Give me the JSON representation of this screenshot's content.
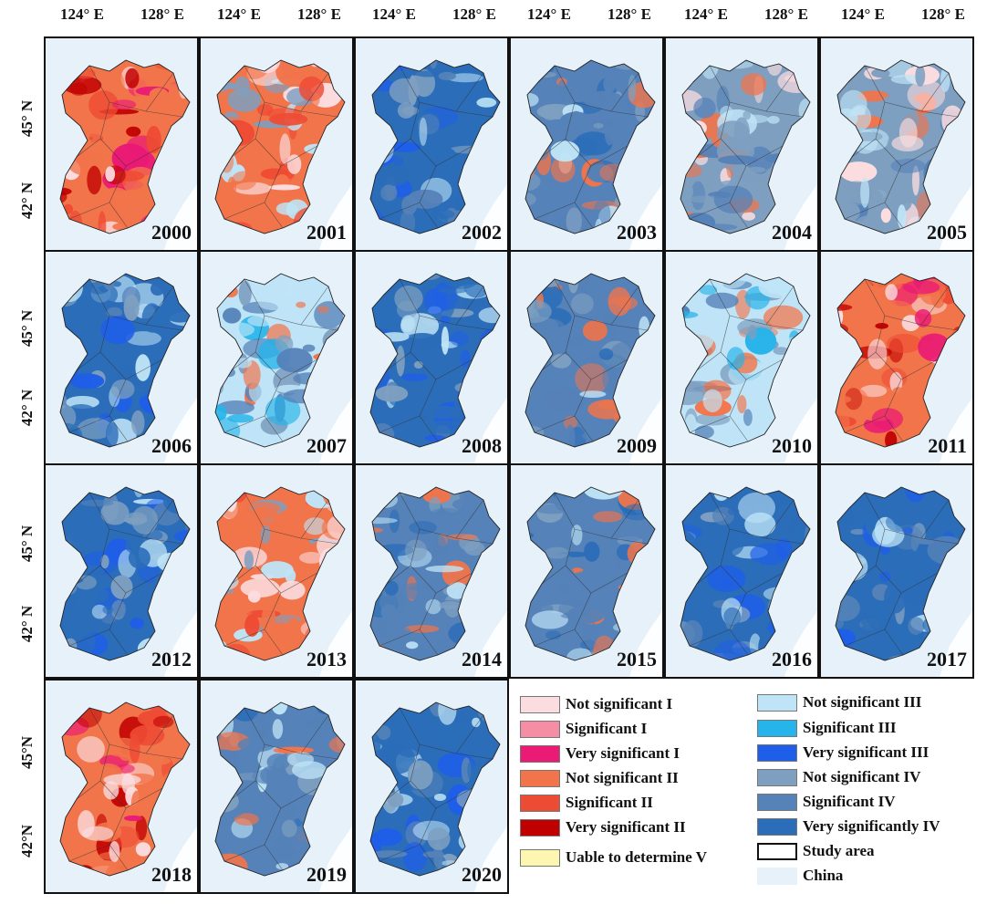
{
  "axis": {
    "top_labels": [
      "124° E",
      "128° E",
      "124° E",
      "128° E",
      "124° E",
      "128° E",
      "124° E",
      "128° E",
      "124° E",
      "128° E",
      "124° E",
      "128° E"
    ],
    "left_labels_row1": [
      "45° N",
      "42° N"
    ],
    "left_labels_row2": [
      "45° N",
      "42° N"
    ],
    "left_labels_row3": [
      "45° N",
      "42° N"
    ],
    "left_labels_row4": [
      "45°N",
      "42°N"
    ]
  },
  "panels": [
    {
      "year": "2000",
      "dominant": "red"
    },
    {
      "year": "2001",
      "dominant": "mixed-red"
    },
    {
      "year": "2002",
      "dominant": "blue"
    },
    {
      "year": "2003",
      "dominant": "slate"
    },
    {
      "year": "2004",
      "dominant": "mixed"
    },
    {
      "year": "2005",
      "dominant": "mixed"
    },
    {
      "year": "2006",
      "dominant": "blue"
    },
    {
      "year": "2007",
      "dominant": "light-blue"
    },
    {
      "year": "2008",
      "dominant": "blue"
    },
    {
      "year": "2009",
      "dominant": "slate"
    },
    {
      "year": "2010",
      "dominant": "light-blue"
    },
    {
      "year": "2011",
      "dominant": "red"
    },
    {
      "year": "2012",
      "dominant": "blue"
    },
    {
      "year": "2013",
      "dominant": "mixed-red"
    },
    {
      "year": "2014",
      "dominant": "slate"
    },
    {
      "year": "2015",
      "dominant": "slate"
    },
    {
      "year": "2016",
      "dominant": "blue"
    },
    {
      "year": "2017",
      "dominant": "blue"
    },
    {
      "year": "2018",
      "dominant": "red"
    },
    {
      "year": "2019",
      "dominant": "slate"
    },
    {
      "year": "2020",
      "dominant": "blue"
    }
  ],
  "legend": {
    "items": [
      {
        "label": "Not significant I",
        "color": "#fbdde0",
        "kind": "box"
      },
      {
        "label": "Significant I",
        "color": "#f58ea5",
        "kind": "box"
      },
      {
        "label": "Very significant I",
        "color": "#ea1a75",
        "kind": "box"
      },
      {
        "label": "Not significant II",
        "color": "#f2744a",
        "kind": "box"
      },
      {
        "label": "Significant II",
        "color": "#ee4b34",
        "kind": "box"
      },
      {
        "label": "Very significant II",
        "color": "#c00000",
        "kind": "box"
      },
      {
        "label": "Uable to determine V",
        "color": "#fdf6b0",
        "kind": "box"
      },
      {
        "label": "Not significant III",
        "color": "#bfe4f7",
        "kind": "box"
      },
      {
        "label": "Significant III",
        "color": "#27b4ea",
        "kind": "box"
      },
      {
        "label": "Very significant III",
        "color": "#1f5ee8",
        "kind": "box"
      },
      {
        "label": "Not significant IV",
        "color": "#7e9fc0",
        "kind": "box"
      },
      {
        "label": "Significant IV",
        "color": "#5582b8",
        "kind": "box"
      },
      {
        "label": "Very significantly IV",
        "color": "#2b6db8",
        "kind": "box"
      },
      {
        "label": "Study area",
        "color": "#ffffff",
        "kind": "outline"
      },
      {
        "label": "China",
        "color": "#e6f1f9",
        "kind": "fill"
      }
    ]
  },
  "palette": {
    "red": [
      "#f2744a",
      "#ee4b34",
      "#c00000",
      "#fbdde0",
      "#ea1a75"
    ],
    "mixed-red": [
      "#f2744a",
      "#7e9fc0",
      "#bfe4f7",
      "#ee4b34",
      "#fbdde0"
    ],
    "blue": [
      "#2b6db8",
      "#1f5ee8",
      "#5582b8",
      "#bfe4f7",
      "#7e9fc0"
    ],
    "slate": [
      "#5582b8",
      "#7e9fc0",
      "#2b6db8",
      "#bfe4f7",
      "#f2744a"
    ],
    "light-blue": [
      "#bfe4f7",
      "#7e9fc0",
      "#5582b8",
      "#27b4ea",
      "#f2744a"
    ],
    "mixed": [
      "#7e9fc0",
      "#f2744a",
      "#bfe4f7",
      "#5582b8",
      "#fbdde0"
    ]
  }
}
